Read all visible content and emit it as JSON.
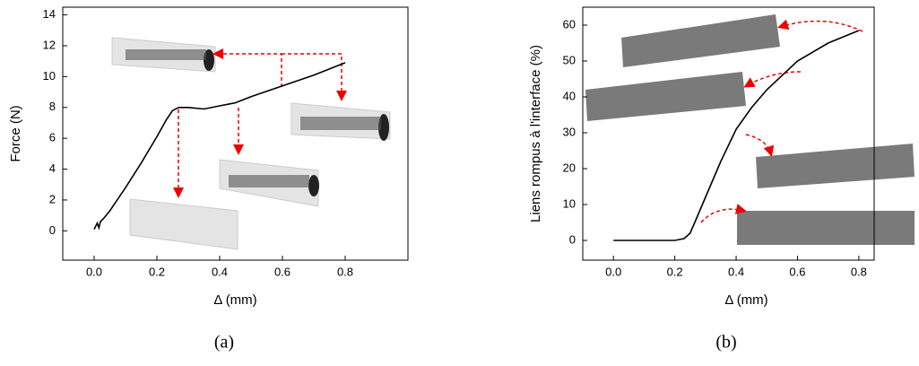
{
  "chart_data": [
    {
      "type": "line",
      "caption": "(a)",
      "x_label": "Δ (mm)",
      "y_label": "Force (N)",
      "xlim": [
        -0.1,
        1.0
      ],
      "ylim": [
        -1.9,
        14.5
      ],
      "xticks": [
        {
          "value": 0,
          "label": "0.0"
        },
        0.2,
        0.4,
        0.6,
        0.8
      ],
      "yticks": [
        0,
        2,
        4,
        6,
        8,
        10,
        12,
        14
      ],
      "series": [
        {
          "color": "#000000",
          "x": [
            0,
            0.01,
            0.015,
            0.02,
            0.03,
            0.05,
            0.1,
            0.15,
            0.2,
            0.23,
            0.25,
            0.27,
            0.3,
            0.35,
            0.4,
            0.45,
            0.5,
            0.6,
            0.7,
            0.8
          ],
          "values": [
            0.1,
            0.5,
            0.2,
            0.6,
            0.8,
            1.3,
            2.8,
            4.4,
            6.1,
            7.2,
            7.8,
            8.0,
            8.0,
            7.9,
            8.1,
            8.3,
            8.7,
            9.4,
            10.1,
            10.9
          ]
        }
      ]
    },
    {
      "type": "line",
      "caption": "(b)",
      "x_label": "Δ (mm)",
      "y_label": "Liens rompus à l'interface (%)",
      "xlim": [
        -0.1,
        0.85
      ],
      "ylim": [
        -5.5,
        65
      ],
      "xticks": [
        {
          "value": 0,
          "label": "0.0"
        },
        0.2,
        0.4,
        0.6,
        0.8
      ],
      "yticks": [
        0,
        10,
        20,
        30,
        40,
        50,
        60
      ],
      "series": [
        {
          "color": "#000000",
          "x": [
            0,
            0.1,
            0.2,
            0.23,
            0.25,
            0.27,
            0.3,
            0.35,
            0.4,
            0.45,
            0.5,
            0.6,
            0.7,
            0.8
          ],
          "values": [
            0,
            0,
            0,
            0.5,
            2,
            6,
            12,
            22,
            31,
            37,
            42,
            50,
            55,
            58.5
          ]
        }
      ]
    }
  ]
}
